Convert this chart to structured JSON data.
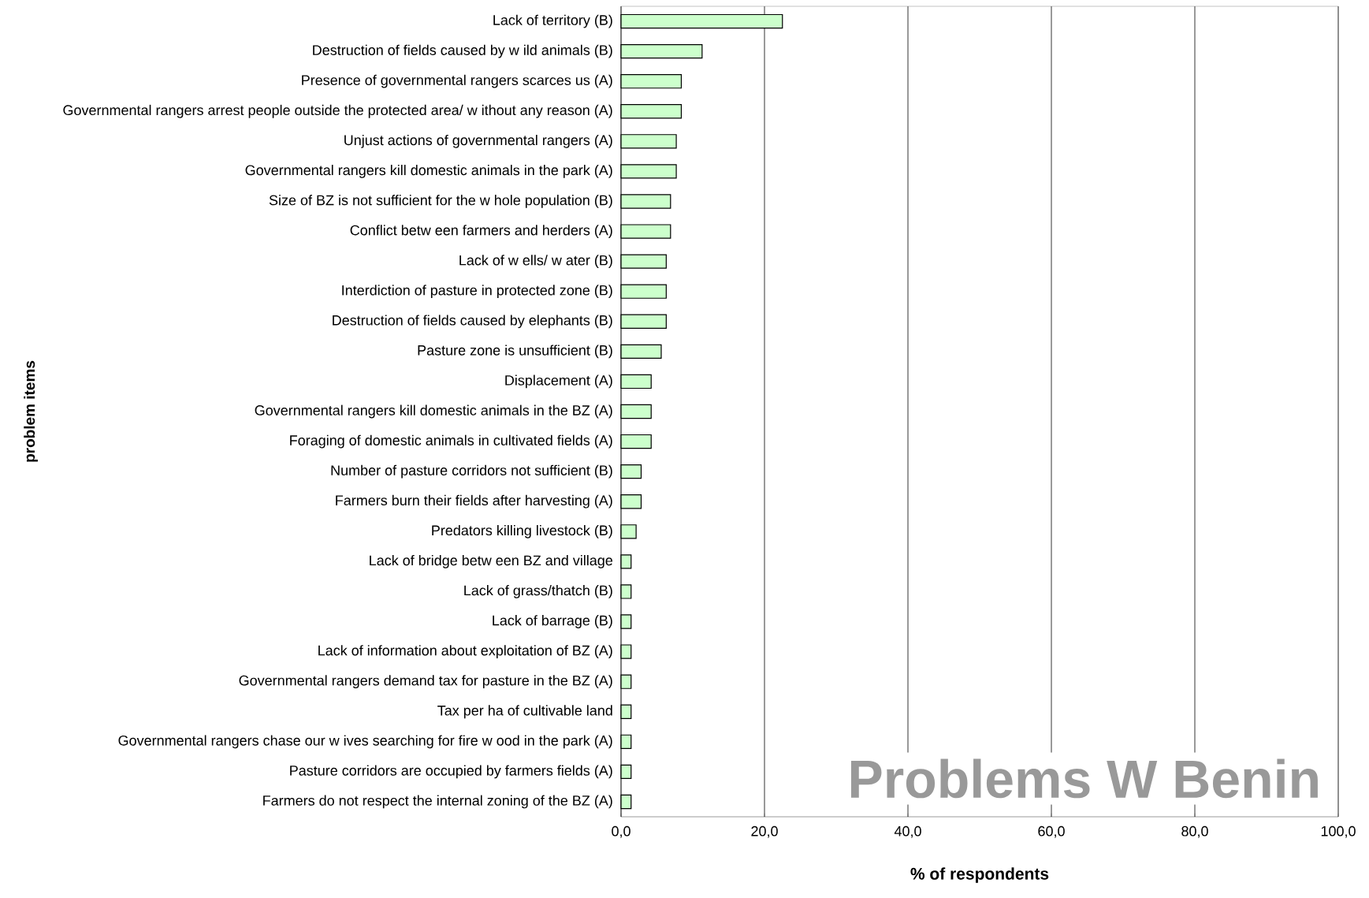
{
  "chart_data": {
    "type": "bar",
    "orientation": "horizontal",
    "xlabel": "% of respondents",
    "ylabel": "problem items",
    "categories": [
      "Lack of territory (B)",
      "Destruction of fields caused by w ild animals (B)",
      "Presence of governmental rangers scarces us (A)",
      "Governmental rangers arrest people outside the protected area/ w ithout any reason (A)",
      "Unjust actions of governmental rangers (A)",
      "Governmental rangers kill domestic animals in the park (A)",
      "Size of BZ is not sufficient for the w hole population (B)",
      "Conflict betw een farmers and herders (A)",
      "Lack of w ells/ w ater (B)",
      "Interdiction of pasture in protected zone (B)",
      "Destruction of fields caused by elephants (B)",
      "Pasture zone is unsufficient (B)",
      "Displacement (A)",
      "Governmental rangers kill domestic animals in the BZ (A)",
      "Foraging of domestic animals in cultivated fields (A)",
      "Number of pasture corridors not sufficient (B)",
      "Farmers burn their fields after harvesting (A)",
      "Predators killing livestock (B)",
      "Lack of bridge betw een BZ and village",
      "Lack of grass/thatch (B)",
      "Lack of barrage (B)",
      "Lack of information about exploitation of BZ (A)",
      "Governmental rangers demand tax for pasture in the BZ (A)",
      "Tax per ha of cultivable land",
      "Governmental rangers chase our w ives searching for fire w ood in the park (A)",
      "Pasture corridors are occupied by farmers fields (A)",
      "Farmers do not respect the internal zoning of the BZ (A)"
    ],
    "values": [
      22.5,
      11.3,
      8.4,
      8.4,
      7.7,
      7.7,
      6.9,
      6.9,
      6.3,
      6.3,
      6.3,
      5.6,
      4.2,
      4.2,
      4.2,
      2.8,
      2.8,
      2.1,
      1.4,
      1.4,
      1.4,
      1.4,
      1.4,
      1.4,
      1.4,
      1.4,
      1.4
    ],
    "color": "#ccffcc",
    "xlim": [
      0,
      100
    ],
    "xticks": [
      {
        "value": 0,
        "label": "0,0"
      },
      {
        "value": 20,
        "label": "20,0"
      },
      {
        "value": 40,
        "label": "40,0"
      },
      {
        "value": 60,
        "label": "60,0"
      },
      {
        "value": 80,
        "label": "80,0"
      },
      {
        "value": 100,
        "label": "100,0"
      }
    ],
    "grid": "x",
    "annotations": [
      "Problems W Benin"
    ]
  }
}
